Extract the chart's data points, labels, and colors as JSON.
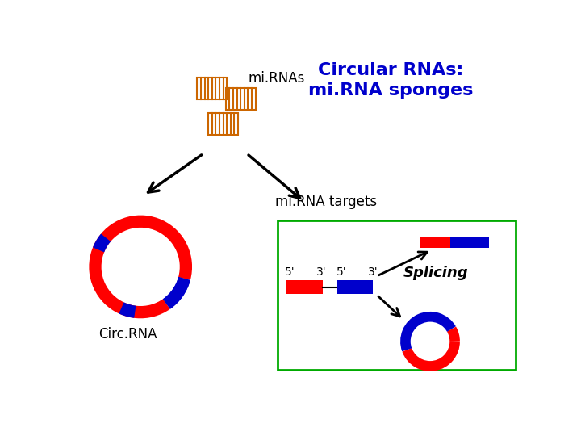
{
  "title": "Circular RNAs:\nmi.RNA sponges",
  "title_color": "#0000CC",
  "mirnas_label": "mi.RNAs",
  "mirna_targets_label": "mi.RNA targets",
  "circrna_label": "Circ.RNA",
  "splicing_label": "Splicing",
  "red": "#FF0000",
  "blue": "#0000CC",
  "orange": "#CC6600",
  "green_box": "#00AA00",
  "background": "#FFFFFF",
  "arrow_color": "#000000"
}
